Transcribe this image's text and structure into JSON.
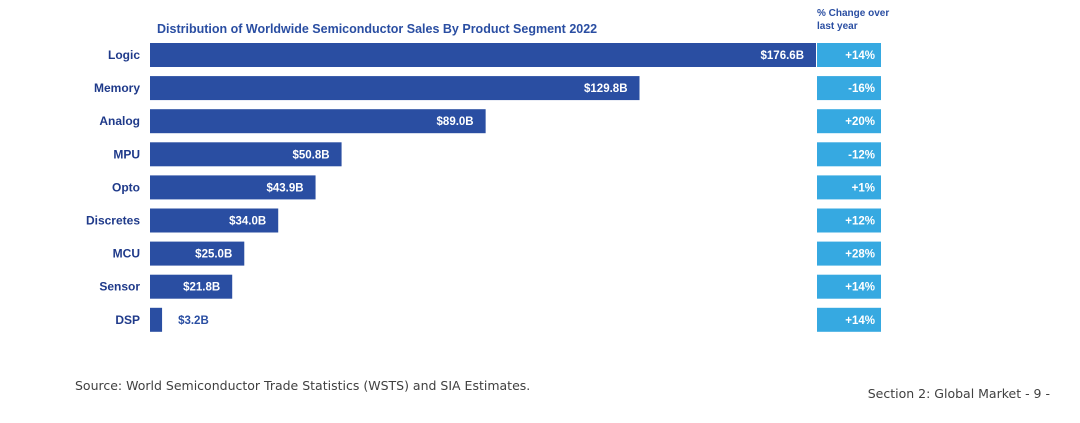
{
  "chart_data": {
    "type": "bar",
    "orientation": "horizontal",
    "title": "Distribution of Worldwide Semiconductor Sales By Product Segment 2022",
    "change_header": "% Change over last year",
    "categories": [
      "Logic",
      "Memory",
      "Analog",
      "MPU",
      "Opto",
      "Discretes",
      "MCU",
      "Sensor",
      "DSP"
    ],
    "values": [
      176.6,
      129.8,
      89.0,
      50.8,
      43.9,
      34.0,
      25.0,
      21.8,
      3.2
    ],
    "value_labels": [
      "$176.6B",
      "$129.8B",
      "$89.0B",
      "$50.8B",
      "$43.9B",
      "$34.0B",
      "$25.0B",
      "$21.8B",
      "$3.2B"
    ],
    "change_labels": [
      "+14%",
      "-16%",
      "+20%",
      "-12%",
      "+1%",
      "+12%",
      "+28%",
      "+14%",
      "+14%"
    ],
    "unit": "Billion USD",
    "grid": false,
    "colors": {
      "bar": "#2a4ea2",
      "change_box": "#36a9e1",
      "title": "#2a4ea2",
      "label": "#1f3a8a"
    }
  },
  "footer": {
    "source": "Source: World Semiconductor Trade Statistics (WSTS) and SIA Estimates.",
    "section": "Section 2: Global Market - 9 -"
  }
}
